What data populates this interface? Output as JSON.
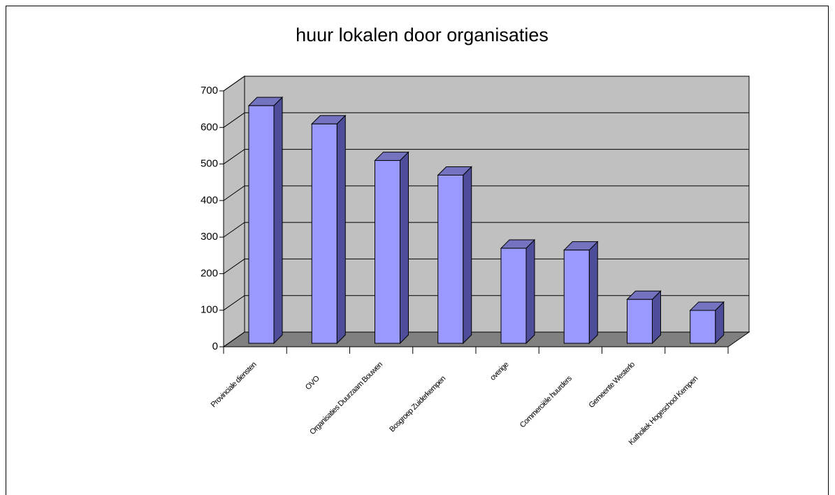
{
  "chart_data": {
    "type": "bar",
    "title": "huur lokalen door organisaties",
    "categories": [
      "Provinciale diensten",
      "OVO",
      "Organisaties Duurzaam Bouwen",
      "Bosgroep Zuiderkempen",
      "overige",
      "Commerciële huurders",
      "Gemeente Westerlo",
      "Katholiek Hogeschool Kempen"
    ],
    "values": [
      650,
      600,
      500,
      460,
      260,
      255,
      120,
      90
    ],
    "color": "#9999ff",
    "ylim": [
      0,
      700
    ],
    "yticks": [
      0,
      100,
      200,
      300,
      400,
      500,
      600,
      700
    ],
    "grid": true
  }
}
